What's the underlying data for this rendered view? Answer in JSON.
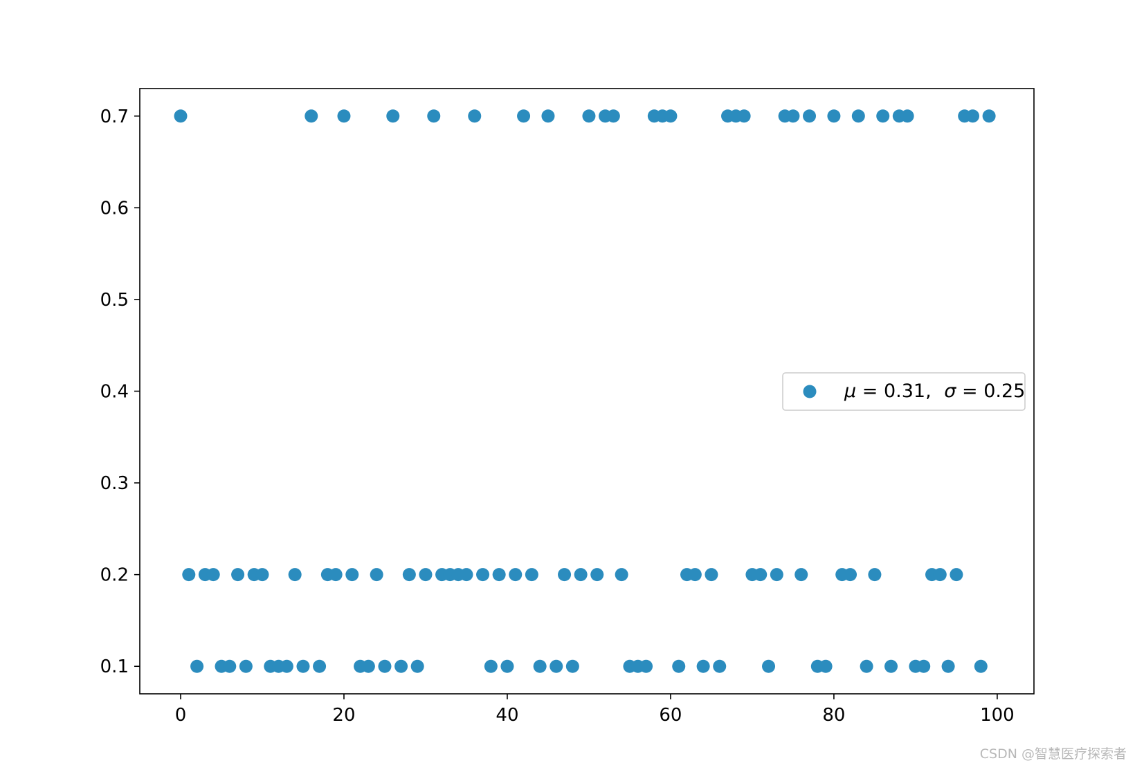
{
  "chart_data": {
    "type": "scatter",
    "title": "",
    "xlabel": "",
    "ylabel": "",
    "xlim": [
      -5,
      104.5
    ],
    "ylim": [
      0.07,
      0.73
    ],
    "xticks": [
      0,
      20,
      40,
      60,
      80,
      100
    ],
    "xtick_labels": [
      "0",
      "20",
      "40",
      "60",
      "80",
      "100"
    ],
    "yticks": [
      0.1,
      0.2,
      0.3,
      0.4,
      0.5,
      0.6,
      0.7
    ],
    "ytick_labels": [
      "0.1",
      "0.2",
      "0.3",
      "0.4",
      "0.5",
      "0.6",
      "0.7"
    ],
    "grid": false,
    "legend_position": "center-right",
    "series": [
      {
        "legend": {
          "mu_symbol": "μ",
          "mu_value": "= 0.31,",
          "sigma_symbol": "σ",
          "sigma_value": "= 0.25"
        },
        "color": "#2b8cbe",
        "x": [
          0,
          1,
          2,
          3,
          4,
          5,
          6,
          7,
          8,
          9,
          10,
          11,
          12,
          13,
          14,
          15,
          16,
          17,
          18,
          19,
          20,
          21,
          22,
          23,
          24,
          25,
          26,
          27,
          28,
          29,
          30,
          31,
          32,
          33,
          34,
          35,
          36,
          37,
          38,
          39,
          40,
          41,
          42,
          43,
          44,
          45,
          46,
          47,
          48,
          49,
          50,
          51,
          52,
          53,
          54,
          55,
          56,
          57,
          58,
          59,
          60,
          61,
          62,
          63,
          64,
          65,
          66,
          67,
          68,
          69,
          70,
          71,
          72,
          73,
          74,
          75,
          76,
          77,
          78,
          79,
          80,
          81,
          82,
          83,
          84,
          85,
          86,
          87,
          88,
          89,
          90,
          91,
          92,
          93,
          94,
          95,
          96,
          97,
          98,
          99
        ],
        "y": [
          0.7,
          0.2,
          0.1,
          0.2,
          0.2,
          0.1,
          0.1,
          0.2,
          0.1,
          0.2,
          0.2,
          0.1,
          0.1,
          0.1,
          0.2,
          0.1,
          0.7,
          0.1,
          0.2,
          0.2,
          0.7,
          0.2,
          0.1,
          0.1,
          0.2,
          0.1,
          0.7,
          0.1,
          0.2,
          0.1,
          0.2,
          0.7,
          0.2,
          0.2,
          0.2,
          0.2,
          0.7,
          0.2,
          0.1,
          0.2,
          0.1,
          0.2,
          0.7,
          0.2,
          0.1,
          0.7,
          0.1,
          0.2,
          0.1,
          0.2,
          0.7,
          0.2,
          0.7,
          0.7,
          0.2,
          0.1,
          0.1,
          0.1,
          0.7,
          0.7,
          0.7,
          0.1,
          0.2,
          0.2,
          0.1,
          0.2,
          0.1,
          0.7,
          0.7,
          0.7,
          0.2,
          0.2,
          0.1,
          0.2,
          0.7,
          0.7,
          0.2,
          0.7,
          0.1,
          0.1,
          0.7,
          0.2,
          0.2,
          0.7,
          0.1,
          0.2,
          0.7,
          0.1,
          0.7,
          0.7,
          0.1,
          0.1,
          0.2,
          0.2,
          0.1,
          0.2,
          0.7,
          0.7,
          0.1,
          0.7
        ]
      }
    ]
  },
  "watermark": "CSDN @智慧医疗探索者"
}
